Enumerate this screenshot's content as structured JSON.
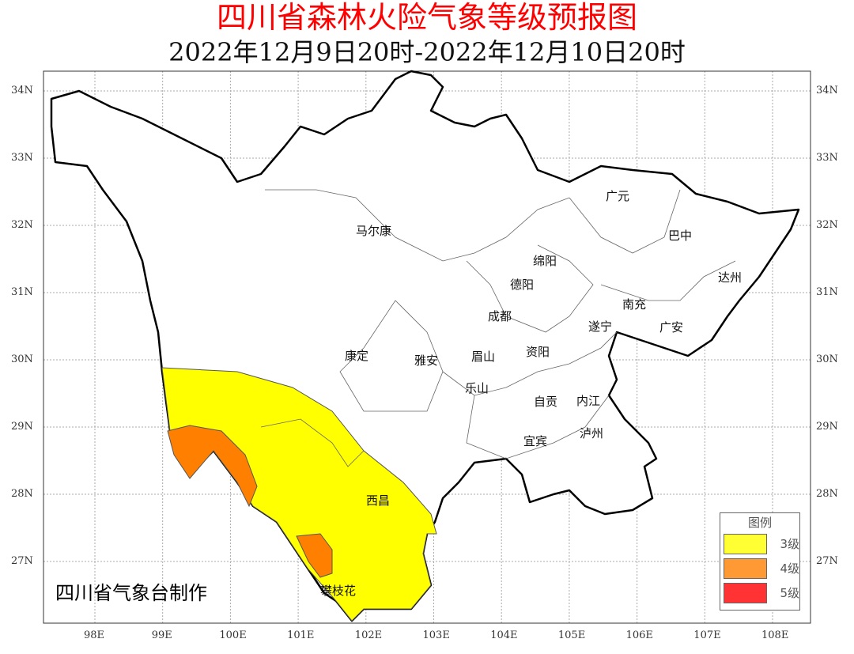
{
  "title": "四川省森林火险气象等级预报图",
  "subtitle": "2022年12月9日20时-2022年12月10日20时",
  "credit": "四川省气象台制作",
  "lat_ticks": [
    "34N",
    "33N",
    "32N",
    "31N",
    "30N",
    "29N",
    "28N",
    "27N"
  ],
  "lon_ticks": [
    "98E",
    "99E",
    "100E",
    "101E",
    "102E",
    "103E",
    "104E",
    "105E",
    "106E",
    "107E",
    "108E"
  ],
  "cities": [
    "马尔康",
    "广元",
    "巴中",
    "绵阳",
    "德阳",
    "达州",
    "南充",
    "成都",
    "遂宁",
    "广安",
    "康定",
    "雅安",
    "眉山",
    "资阳",
    "乐山",
    "自贡",
    "内江",
    "宜宾",
    "泸州",
    "西昌",
    "攀枝花"
  ],
  "legend": {
    "title": "图例",
    "items": [
      {
        "label": "3级",
        "color": "#ffff33"
      },
      {
        "label": "4级",
        "color": "#ff9933"
      },
      {
        "label": "5级",
        "color": "#ff3333"
      }
    ]
  },
  "colors": {
    "level3_fill": "#ffff00",
    "level4_fill": "#ff8000",
    "title": "#ff0000"
  }
}
